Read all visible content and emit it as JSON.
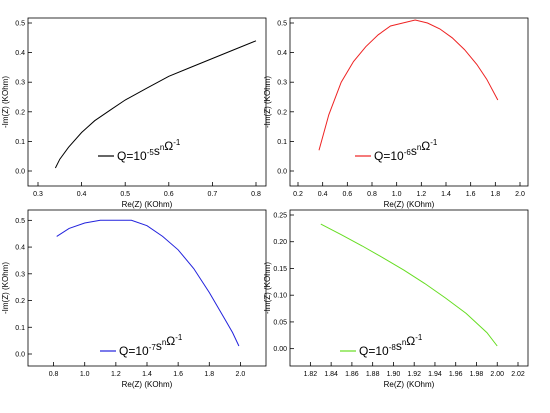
{
  "chart_data": [
    {
      "type": "line",
      "xlabel": "Re(Z) (KOhm)",
      "ylabel": "-Im(Z) (KOhm)",
      "xlim": [
        0.3,
        0.8
      ],
      "ylim": [
        0,
        0.5
      ],
      "xticks": [
        "0.3",
        "0.4",
        "0.5",
        "0.6",
        "0.7",
        "0.8"
      ],
      "yticks": [
        "0.0",
        "0.1",
        "0.2",
        "0.3",
        "0.4",
        "0.5"
      ],
      "legend": {
        "base": "Q=10",
        "exp": "-5",
        "unit": "s",
        "unit_sup": "n",
        "ohm": "Ω",
        "ohm_sup": "-1"
      },
      "color": "#000000",
      "series": [
        {
          "x": [
            0.34,
            0.35,
            0.37,
            0.4,
            0.43,
            0.47,
            0.5,
            0.55,
            0.6,
            0.65,
            0.7,
            0.75,
            0.8
          ],
          "y": [
            0.01,
            0.04,
            0.08,
            0.13,
            0.17,
            0.21,
            0.24,
            0.28,
            0.32,
            0.35,
            0.38,
            0.41,
            0.44
          ]
        }
      ]
    },
    {
      "type": "line",
      "xlabel": "Re(Z) (KOhm)",
      "ylabel": "-Im(Z) (KOhm)",
      "xlim": [
        0.2,
        2.0
      ],
      "ylim": [
        0,
        0.5
      ],
      "xticks": [
        "0.2",
        "0.4",
        "0.6",
        "0.8",
        "1.0",
        "1.2",
        "1.4",
        "1.6",
        "1.8",
        "2.0"
      ],
      "yticks": [
        "0.0",
        "0.1",
        "0.2",
        "0.3",
        "0.4",
        "0.5"
      ],
      "legend": {
        "base": "Q=10",
        "exp": "-6",
        "unit": "s",
        "unit_sup": "n",
        "ohm": "Ω",
        "ohm_sup": "-1"
      },
      "color": "#ee2222",
      "series": [
        {
          "x": [
            0.37,
            0.45,
            0.55,
            0.65,
            0.75,
            0.85,
            0.95,
            1.05,
            1.15,
            1.25,
            1.35,
            1.45,
            1.55,
            1.65,
            1.73,
            1.82
          ],
          "y": [
            0.07,
            0.19,
            0.3,
            0.37,
            0.42,
            0.46,
            0.49,
            0.5,
            0.51,
            0.5,
            0.48,
            0.45,
            0.41,
            0.36,
            0.31,
            0.24
          ]
        }
      ]
    },
    {
      "type": "line",
      "xlabel": "Re(Z) (KOhm)",
      "ylabel": "-Im(Z) (KOhm)",
      "xlim": [
        0.7,
        2.1
      ],
      "ylim": [
        0,
        0.52
      ],
      "xticks": [
        "0.8",
        "1.0",
        "1.2",
        "1.4",
        "1.6",
        "1.8",
        "2.0"
      ],
      "yticks": [
        "0.0",
        "0.1",
        "0.2",
        "0.3",
        "0.4",
        "0.5"
      ],
      "legend": {
        "base": "Q=10",
        "exp": "-7",
        "unit": "s",
        "unit_sup": "n",
        "ohm": "Ω",
        "ohm_sup": "-1"
      },
      "color": "#2222dd",
      "series": [
        {
          "x": [
            0.82,
            0.9,
            1.0,
            1.1,
            1.2,
            1.3,
            1.4,
            1.5,
            1.6,
            1.7,
            1.8,
            1.9,
            1.95,
            1.99
          ],
          "y": [
            0.44,
            0.47,
            0.49,
            0.5,
            0.5,
            0.5,
            0.48,
            0.44,
            0.39,
            0.32,
            0.23,
            0.13,
            0.08,
            0.03
          ]
        }
      ]
    },
    {
      "type": "line",
      "xlabel": "Re(Z) (KOhm)",
      "ylabel": "-Im(Z) (KOhm)",
      "xlim": [
        1.81,
        2.02
      ],
      "ylim": [
        -0.01,
        0.25
      ],
      "xticks": [
        "1.82",
        "1.84",
        "1.86",
        "1.88",
        "1.90",
        "1.92",
        "1.94",
        "1.96",
        "1.98",
        "2.00",
        "2.02"
      ],
      "yticks": [
        "0.00",
        "0.05",
        "0.10",
        "0.15",
        "0.20",
        "0.25"
      ],
      "legend": {
        "base": "Q=10",
        "exp": "-8",
        "unit": "s",
        "unit_sup": "n",
        "ohm": "Ω",
        "ohm_sup": "-1"
      },
      "color": "#66dd22",
      "series": [
        {
          "x": [
            1.83,
            1.85,
            1.87,
            1.89,
            1.91,
            1.93,
            1.95,
            1.97,
            1.99,
            2.0
          ],
          "y": [
            0.233,
            0.213,
            0.192,
            0.17,
            0.147,
            0.122,
            0.095,
            0.066,
            0.03,
            0.005
          ]
        }
      ]
    }
  ]
}
